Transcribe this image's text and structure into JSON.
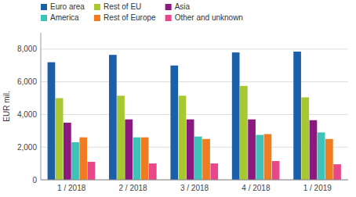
{
  "chart_data": {
    "type": "bar",
    "categories": [
      "1 / 2018",
      "2 / 2018",
      "3 / 2018",
      "4 / 2018",
      "1 / 2019"
    ],
    "series": [
      {
        "name": "Euro area",
        "color": "#1a5fa8",
        "values": [
          7200,
          7650,
          7000,
          7800,
          7850
        ]
      },
      {
        "name": "Rest of EU",
        "color": "#a8c832",
        "values": [
          5000,
          5150,
          5150,
          5750,
          5050
        ]
      },
      {
        "name": "Asia",
        "color": "#8b1a7e",
        "values": [
          3500,
          3700,
          3700,
          3700,
          3650
        ]
      },
      {
        "name": "America",
        "color": "#3ec3b8",
        "values": [
          2300,
          2600,
          2650,
          2750,
          2900
        ]
      },
      {
        "name": "Rest of Europe",
        "color": "#f07b20",
        "values": [
          2600,
          2600,
          2500,
          2800,
          2500
        ]
      },
      {
        "name": "Other and unknown",
        "color": "#e8478a",
        "values": [
          1100,
          1000,
          1000,
          1150,
          950
        ]
      }
    ],
    "ylabel": "EUR mil.",
    "ylim": [
      0,
      9000
    ],
    "yticks": [
      0,
      {
        "value": 2000,
        "label": "2,000"
      },
      {
        "value": 4000,
        "label": "4,000"
      },
      {
        "value": 6000,
        "label": "6,000"
      },
      {
        "value": 8000,
        "label": "8,000"
      }
    ],
    "grid": true,
    "legend": "top"
  }
}
